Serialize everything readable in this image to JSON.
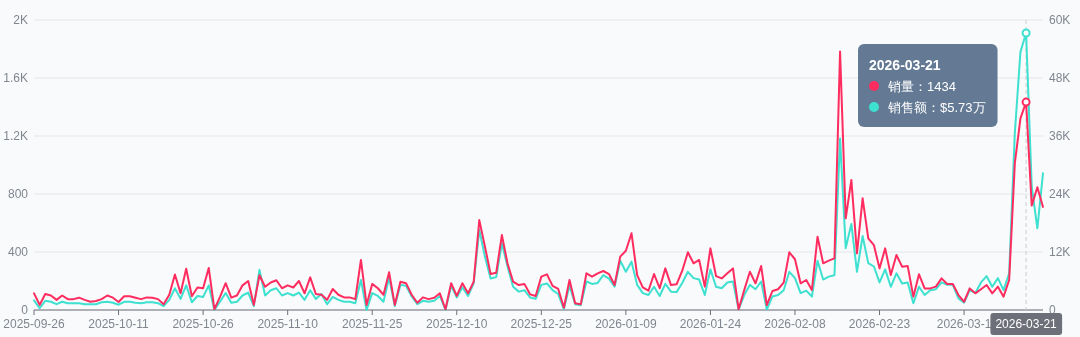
{
  "chart_data": {
    "type": "line",
    "x": [
      "2025-09-26",
      "2025-09-27",
      "2025-09-28",
      "2025-09-29",
      "2025-09-30",
      "2025-10-01",
      "2025-10-02",
      "2025-10-03",
      "2025-10-04",
      "2025-10-05",
      "2025-10-06",
      "2025-10-07",
      "2025-10-08",
      "2025-10-09",
      "2025-10-10",
      "2025-10-11",
      "2025-10-12",
      "2025-10-13",
      "2025-10-14",
      "2025-10-15",
      "2025-10-16",
      "2025-10-17",
      "2025-10-18",
      "2025-10-19",
      "2025-10-20",
      "2025-10-21",
      "2025-10-22",
      "2025-10-23",
      "2025-10-24",
      "2025-10-25",
      "2025-10-26",
      "2025-10-27",
      "2025-10-28",
      "2025-10-29",
      "2025-10-30",
      "2025-10-31",
      "2025-11-01",
      "2025-11-02",
      "2025-11-03",
      "2025-11-04",
      "2025-11-05",
      "2025-11-06",
      "2025-11-07",
      "2025-11-08",
      "2025-11-09",
      "2025-11-10",
      "2025-11-11",
      "2025-11-12",
      "2025-11-13",
      "2025-11-14",
      "2025-11-15",
      "2025-11-16",
      "2025-11-17",
      "2025-11-18",
      "2025-11-19",
      "2025-11-20",
      "2025-11-21",
      "2025-11-22",
      "2025-11-23",
      "2025-11-24",
      "2025-11-25",
      "2025-11-26",
      "2025-11-27",
      "2025-11-28",
      "2025-11-29",
      "2025-11-30",
      "2025-12-01",
      "2025-12-02",
      "2025-12-03",
      "2025-12-04",
      "2025-12-05",
      "2025-12-06",
      "2025-12-07",
      "2025-12-08",
      "2025-12-09",
      "2025-12-10",
      "2025-12-11",
      "2025-12-12",
      "2025-12-13",
      "2025-12-14",
      "2025-12-15",
      "2025-12-16",
      "2025-12-17",
      "2025-12-18",
      "2025-12-19",
      "2025-12-20",
      "2025-12-21",
      "2025-12-22",
      "2025-12-23",
      "2025-12-24",
      "2025-12-25",
      "2025-12-26",
      "2025-12-27",
      "2025-12-28",
      "2025-12-29",
      "2025-12-30",
      "2025-12-31",
      "2026-01-01",
      "2026-01-02",
      "2026-01-03",
      "2026-01-04",
      "2026-01-05",
      "2026-01-06",
      "2026-01-07",
      "2026-01-08",
      "2026-01-09",
      "2026-01-10",
      "2026-01-11",
      "2026-01-12",
      "2026-01-13",
      "2026-01-14",
      "2026-01-15",
      "2026-01-16",
      "2026-01-17",
      "2026-01-18",
      "2026-01-19",
      "2026-01-20",
      "2026-01-21",
      "2026-01-22",
      "2026-01-23",
      "2026-01-24",
      "2026-01-25",
      "2026-01-26",
      "2026-01-27",
      "2026-01-28",
      "2026-01-29",
      "2026-01-30",
      "2026-01-31",
      "2026-02-01",
      "2026-02-02",
      "2026-02-03",
      "2026-02-04",
      "2026-02-05",
      "2026-02-06",
      "2026-02-07",
      "2026-02-08",
      "2026-02-09",
      "2026-02-10",
      "2026-02-11",
      "2026-02-12",
      "2026-02-13",
      "2026-02-14",
      "2026-02-15",
      "2026-02-16",
      "2026-02-17",
      "2026-02-18",
      "2026-02-19",
      "2026-02-20",
      "2026-02-21",
      "2026-02-22",
      "2026-02-23",
      "2026-02-24",
      "2026-02-25",
      "2026-02-26",
      "2026-02-27",
      "2026-02-28",
      "2026-03-01",
      "2026-03-02",
      "2026-03-03",
      "2026-03-04",
      "2026-03-05",
      "2026-03-06",
      "2026-03-07",
      "2026-03-08",
      "2026-03-09",
      "2026-03-10",
      "2026-03-11",
      "2026-03-12",
      "2026-03-13",
      "2026-03-14",
      "2026-03-15",
      "2026-03-16",
      "2026-03-17",
      "2026-03-18",
      "2026-03-19",
      "2026-03-20",
      "2026-03-21",
      "2026-03-22",
      "2026-03-23",
      "2026-03-24"
    ],
    "series": [
      {
        "color": "#fe2c5f",
        "values": [
          115,
          35,
          110,
          100,
          70,
          100,
          75,
          75,
          85,
          70,
          57,
          62,
          75,
          100,
          85,
          55,
          95,
          95,
          85,
          75,
          87,
          85,
          75,
          40,
          105,
          245,
          115,
          285,
          95,
          155,
          150,
          290,
          5,
          90,
          185,
          85,
          100,
          170,
          200,
          35,
          240,
          160,
          190,
          205,
          150,
          170,
          155,
          200,
          115,
          225,
          110,
          105,
          70,
          145,
          105,
          87,
          87,
          75,
          345,
          35,
          180,
          150,
          105,
          260,
          35,
          195,
          185,
          105,
          50,
          87,
          75,
          85,
          115,
          5,
          185,
          97,
          185,
          115,
          195,
          620,
          437,
          248,
          257,
          517,
          322,
          195,
          172,
          180,
          108,
          97,
          230,
          246,
          166,
          145,
          16,
          207,
          46,
          39,
          253,
          230,
          253,
          269,
          248,
          172,
          368,
          409,
          529,
          241,
          156,
          133,
          248,
          150,
          287,
          172,
          177,
          271,
          398,
          322,
          345,
          161,
          425,
          234,
          218,
          253,
          287,
          5,
          138,
          264,
          184,
          303,
          34,
          131,
          143,
          189,
          398,
          350,
          184,
          207,
          138,
          506,
          322,
          340,
          356,
          1782,
          632,
          897,
          391,
          770,
          494,
          448,
          287,
          425,
          241,
          379,
          299,
          303,
          92,
          246,
          149,
          149,
          161,
          218,
          179,
          179,
          103,
          57,
          149,
          115,
          143,
          172,
          115,
          161,
          92,
          207,
          1011,
          1322,
          1434,
          720,
          846,
          711
        ]
      },
      {
        "color": "#3ee0d0",
        "axis": "y2",
        "values": [
          2000,
          400,
          1900,
          1700,
          1200,
          1700,
          1400,
          1400,
          1400,
          1200,
          1200,
          1200,
          1600,
          1700,
          1500,
          1100,
          1700,
          1700,
          1500,
          1400,
          1600,
          1600,
          1400,
          800,
          2100,
          4500,
          2300,
          5100,
          1600,
          2900,
          2700,
          5100,
          0,
          1700,
          3500,
          1500,
          1700,
          3000,
          3600,
          800,
          8300,
          3000,
          4100,
          4500,
          3000,
          3500,
          3000,
          3600,
          2100,
          4100,
          2300,
          3300,
          1200,
          2700,
          2100,
          1700,
          1700,
          1400,
          6200,
          0,
          3500,
          2900,
          1700,
          6700,
          800,
          5200,
          5000,
          2800,
          1200,
          1900,
          1700,
          1900,
          2900,
          0,
          5000,
          2600,
          4700,
          2900,
          5500,
          16600,
          11000,
          6500,
          6800,
          13800,
          9000,
          4800,
          3800,
          4100,
          2600,
          2300,
          5200,
          5500,
          4100,
          3300,
          200,
          5000,
          1200,
          1000,
          5900,
          5400,
          5600,
          7200,
          6500,
          4800,
          10200,
          7900,
          10000,
          5200,
          3500,
          3100,
          4800,
          2900,
          5400,
          3800,
          3700,
          5600,
          7900,
          6600,
          6300,
          3100,
          8400,
          4800,
          4500,
          5700,
          5900,
          100,
          3100,
          5200,
          4300,
          5900,
          100,
          2800,
          3100,
          4100,
          7900,
          6600,
          3500,
          4000,
          2800,
          10200,
          6300,
          6900,
          7200,
          35500,
          12800,
          17800,
          7900,
          15300,
          9700,
          9000,
          5700,
          8400,
          4800,
          7600,
          5500,
          5700,
          1400,
          4800,
          3100,
          4100,
          4300,
          5700,
          5200,
          5200,
          2400,
          1500,
          4100,
          3500,
          5700,
          7000,
          4800,
          6600,
          4100,
          7600,
          36600,
          53400,
          57300,
          25500,
          16900,
          28300
        ]
      }
    ],
    "xlim": [
      "2025-09-26",
      "2026-03-24"
    ],
    "xticks": [
      "2025-09-26",
      "2025-10-11",
      "2025-10-26",
      "2025-11-10",
      "2025-11-25",
      "2025-12-10",
      "2025-12-25",
      "2026-01-09",
      "2026-01-24",
      "2026-02-08",
      "2026-02-23",
      {
        "value": "2026-03-10",
        "label": "2026-03-1"
      }
    ],
    "ylim": [
      0,
      2000
    ],
    "yticks": [
      0,
      400,
      800,
      {
        "value": 1200,
        "label": "1.2K"
      },
      {
        "value": 1600,
        "label": "1.6K"
      },
      {
        "value": 2000,
        "label": "2K"
      }
    ],
    "y2lim": [
      0,
      60000
    ],
    "y2ticks": [
      0,
      {
        "value": 12000,
        "label": "12K"
      },
      {
        "value": 24000,
        "label": "24K"
      },
      {
        "value": 36000,
        "label": "36K"
      },
      {
        "value": 48000,
        "label": "48K"
      },
      {
        "value": 60000,
        "label": "60K"
      }
    ],
    "grid": "y",
    "ref_lines": [
      {
        "axis": "x",
        "value": "2026-03-21",
        "label": "2026-03-21",
        "line_style": "dashed"
      }
    ],
    "annotations": [
      "2026-03-21",
      "销量：1434",
      "销售额：$5.73万"
    ]
  }
}
